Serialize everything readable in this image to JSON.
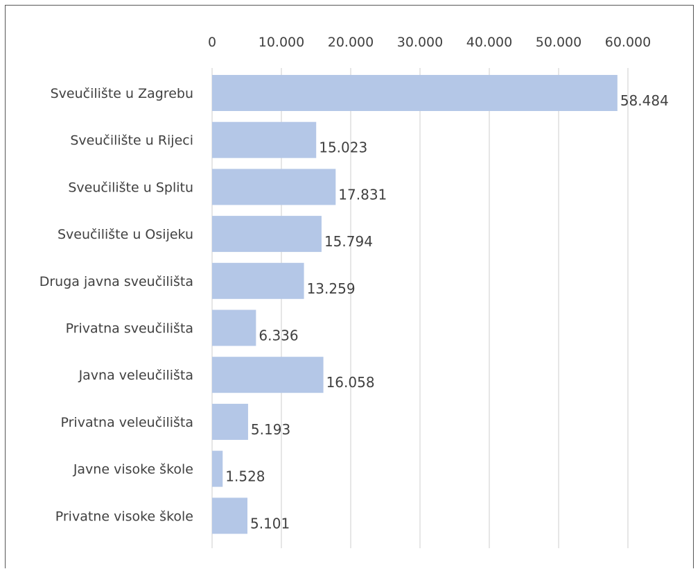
{
  "chart_data": {
    "type": "bar",
    "orientation": "horizontal",
    "title": "",
    "xlabel": "",
    "ylabel": "",
    "xlim": [
      0,
      60000
    ],
    "x_ticks": [
      0,
      10000,
      20000,
      30000,
      40000,
      50000,
      60000
    ],
    "x_tick_labels": [
      "0",
      "10.000",
      "20.000",
      "30.000",
      "40.000",
      "50.000",
      "60.000"
    ],
    "x_axis_position": "top",
    "grid": true,
    "legend": "none",
    "categories": [
      "Sveučilište u Zagrebu",
      "Sveučilište u Rijeci",
      "Sveučilište u Splitu",
      "Sveučilište u Osijeku",
      "Druga javna sveučilišta",
      "Privatna sveučilišta",
      "Javna veleučilišta",
      "Privatna veleučilišta",
      "Javne visoke škole",
      "Privatne visoke škole"
    ],
    "values": [
      58484,
      15023,
      17831,
      15794,
      13259,
      6336,
      16058,
      5193,
      1528,
      5101
    ],
    "value_labels": [
      "58.484",
      "15.023",
      "17.831",
      "15.794",
      "13.259",
      "6.336",
      "16.058",
      "5.193",
      "1.528",
      "5.101"
    ],
    "bar_color": "#b4c7e7"
  }
}
